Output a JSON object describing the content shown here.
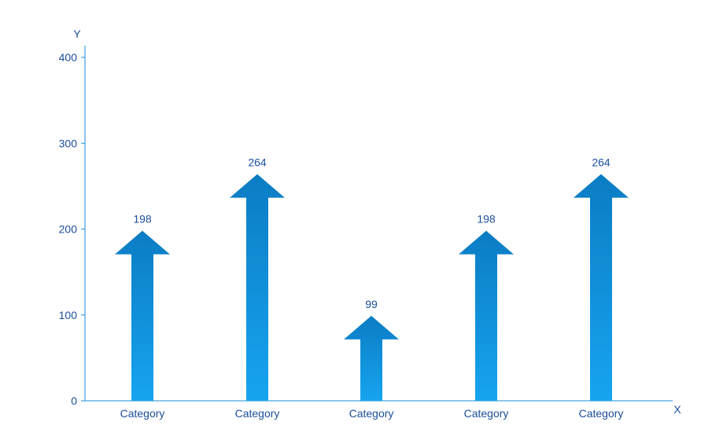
{
  "chart_data": {
    "type": "bar",
    "title": "",
    "xlabel": "X",
    "ylabel": "Y",
    "ylim": [
      0,
      400
    ],
    "yticks": [
      0,
      100,
      200,
      300,
      400
    ],
    "categories": [
      "Category",
      "Category",
      "Category",
      "Category",
      "Category"
    ],
    "values": [
      198,
      264,
      99,
      198,
      264
    ],
    "data_labels": [
      "198",
      "264",
      "99",
      "198",
      "264"
    ],
    "mark_shape": "arrow",
    "colors": {
      "axis": "#1a8fd6",
      "text": "#1b4e9b",
      "bar_top": "#0b7cc4",
      "bar_bottom": "#17a4ef"
    },
    "grid": false,
    "legend": "none"
  }
}
